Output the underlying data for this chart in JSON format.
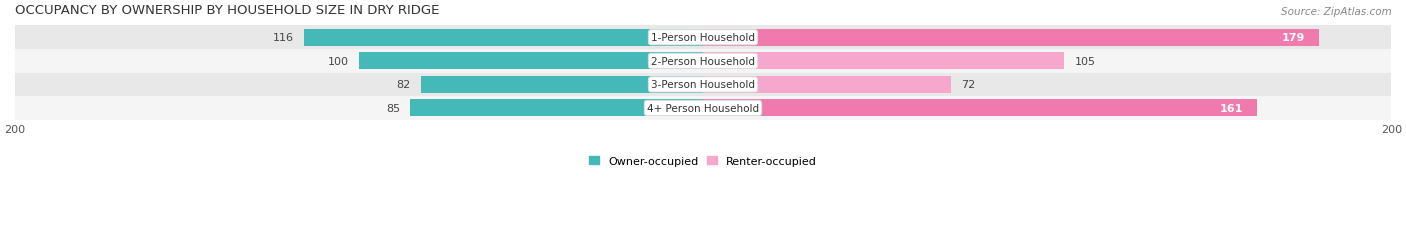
{
  "title": "OCCUPANCY BY OWNERSHIP BY HOUSEHOLD SIZE IN DRY RIDGE",
  "source": "Source: ZipAtlas.com",
  "categories": [
    "1-Person Household",
    "2-Person Household",
    "3-Person Household",
    "4+ Person Household"
  ],
  "owner_values": [
    116,
    100,
    82,
    85
  ],
  "renter_values": [
    179,
    105,
    72,
    161
  ],
  "owner_color": "#45B8B8",
  "renter_color": "#F07AAE",
  "renter_light_color": "#F5A8CC",
  "row_bg_colors": [
    "#E8E8E8",
    "#F5F5F5",
    "#E8E8E8",
    "#F5F5F5"
  ],
  "max_value": 200,
  "label_color": "#555555",
  "title_color": "#333333",
  "title_fontsize": 9.5,
  "bar_label_fontsize": 8,
  "category_fontsize": 7.5,
  "legend_fontsize": 8,
  "axis_fontsize": 8,
  "source_fontsize": 7.5
}
